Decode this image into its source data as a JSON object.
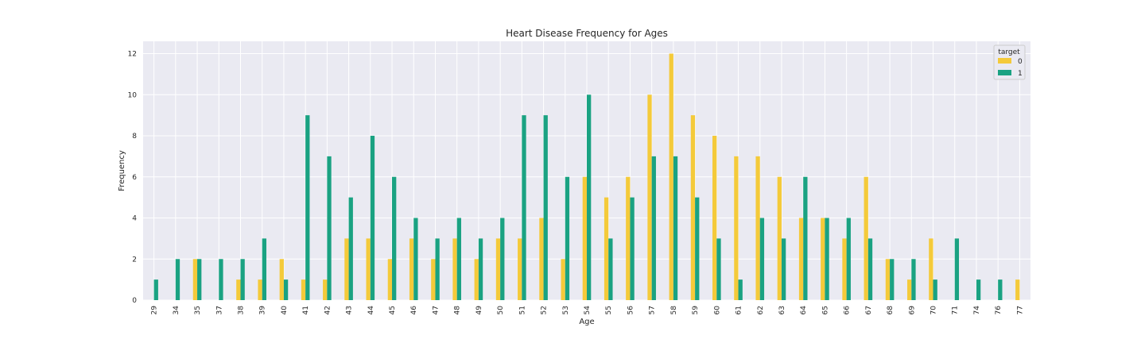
{
  "chart_data": {
    "type": "bar",
    "title": "Heart Disease Frequency for Ages",
    "xlabel": "Age",
    "ylabel": "Frequency",
    "ylim": [
      0,
      12.6
    ],
    "yticks": [
      0,
      2,
      4,
      6,
      8,
      10,
      12
    ],
    "grid": true,
    "legend": {
      "title": "target",
      "placement": "top-right"
    },
    "categories": [
      "29",
      "34",
      "35",
      "37",
      "38",
      "39",
      "40",
      "41",
      "42",
      "43",
      "44",
      "45",
      "46",
      "47",
      "48",
      "49",
      "50",
      "51",
      "52",
      "53",
      "54",
      "55",
      "56",
      "57",
      "58",
      "59",
      "60",
      "61",
      "62",
      "63",
      "64",
      "65",
      "66",
      "67",
      "68",
      "69",
      "70",
      "71",
      "74",
      "76",
      "77"
    ],
    "series": [
      {
        "name": "0",
        "color": "#F4CA3A",
        "values": [
          0,
          0,
          2,
          0,
          1,
          1,
          2,
          1,
          1,
          3,
          3,
          2,
          3,
          2,
          3,
          2,
          3,
          3,
          4,
          2,
          6,
          5,
          6,
          10,
          12,
          9,
          8,
          7,
          7,
          6,
          4,
          4,
          3,
          6,
          2,
          1,
          3,
          0,
          0,
          0,
          1
        ]
      },
      {
        "name": "1",
        "color": "#1AA282",
        "values": [
          1,
          2,
          2,
          2,
          2,
          3,
          1,
          9,
          7,
          5,
          8,
          6,
          4,
          3,
          4,
          3,
          4,
          9,
          9,
          6,
          10,
          3,
          5,
          7,
          7,
          5,
          3,
          1,
          4,
          3,
          6,
          4,
          4,
          3,
          2,
          2,
          1,
          3,
          1,
          1,
          0
        ]
      }
    ]
  }
}
